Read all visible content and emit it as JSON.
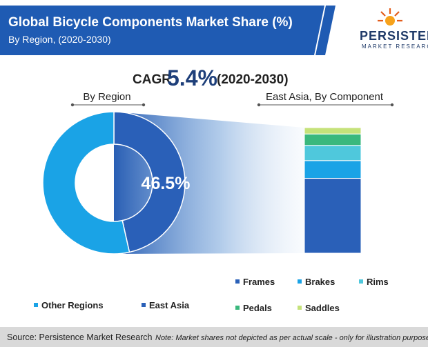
{
  "header": {
    "title": "Global Bicycle Components Market Share (%)",
    "subtitle": "By Region, (2020-2030)",
    "bar_color": "#1f5bb3"
  },
  "logo": {
    "main": "PERSISTENCE",
    "sub": "MARKET RESEARCH"
  },
  "cagr": {
    "label": "CAGR",
    "value": "5.4%",
    "period": "(2020-2030)"
  },
  "chart_data": [
    {
      "type": "pie",
      "variant": "donut",
      "title": "By Region",
      "categories": [
        "East Asia",
        "Other Regions"
      ],
      "values": [
        46.5,
        53.5
      ],
      "colors": [
        "#2a60b8",
        "#1aa3e6"
      ],
      "data_labels": {
        "East Asia": "46.5%"
      }
    },
    {
      "type": "bar",
      "variant": "stacked",
      "title": "East Asia, By Component",
      "categories": [
        "Frames",
        "Brakes",
        "Rims",
        "Pedals",
        "Saddles"
      ],
      "values": [
        59,
        14,
        12,
        9,
        5
      ],
      "colors": [
        "#2a60b8",
        "#1aa3e6",
        "#4fc8dc",
        "#3ab87d",
        "#c5e27a"
      ],
      "note": "Market shares not depicted as per actual scale - only for illustration purposes"
    }
  ],
  "legends": {
    "region": [
      "Other Regions",
      "East Asia"
    ],
    "component_row1": [
      "Frames",
      "Brakes",
      "Rims"
    ],
    "component_row2": [
      "Pedals",
      "Saddles"
    ]
  },
  "footer": {
    "source": "Source: Persistence Market Research",
    "note": "Note: Market shares not depicted as per actual scale - only for illustration purposes",
    "bg_color": "#d9d9d9"
  }
}
